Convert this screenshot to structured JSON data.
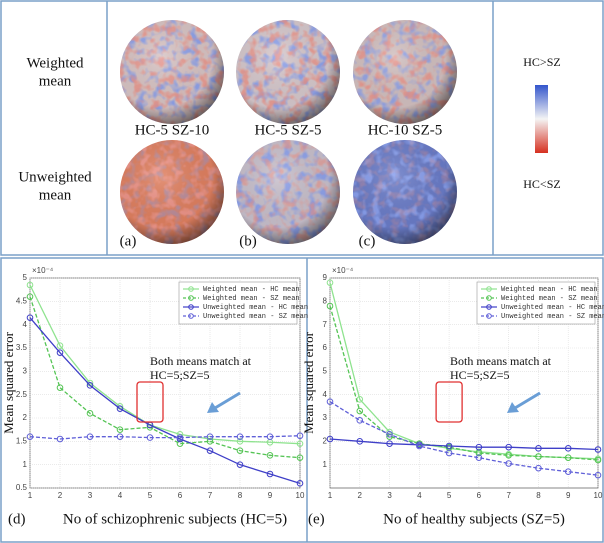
{
  "figure": {
    "row_labels": [
      [
        "Weighted",
        "mean"
      ],
      [
        "Unweighted",
        "mean"
      ]
    ],
    "sphere_labels": [
      "HC-5 SZ-10",
      "HC-5 SZ-5",
      "HC-10 SZ-5"
    ],
    "panel_letters": [
      "(a)",
      "(b)",
      "(c)"
    ],
    "colorbar_labels": [
      "HC>SZ",
      "HC<SZ"
    ]
  },
  "chart_data": [
    {
      "type": "line",
      "panel_letter": "(d)",
      "x_label": "No of schizophrenic subjects (HC=5)",
      "y_label": "Mean squared error",
      "y_exponent": "×10⁻⁴",
      "annotation": [
        "Both means match at",
        "HC=5;SZ=5"
      ],
      "x": [
        1,
        2,
        3,
        4,
        5,
        6,
        7,
        8,
        9,
        10
      ],
      "xlim": [
        1,
        10
      ],
      "xticks": [
        1,
        2,
        3,
        4,
        5,
        6,
        7,
        8,
        9,
        10
      ],
      "ylim": [
        0.5,
        5
      ],
      "yticks": [
        0.5,
        1,
        1.5,
        2,
        2.5,
        3,
        3.5,
        4,
        4.5,
        5
      ],
      "grid": true,
      "legend": "upper right",
      "series": [
        {
          "name": "Weighted mean - HC mean",
          "color": "#8fe38f",
          "dashed": false,
          "values": [
            4.85,
            3.55,
            2.75,
            2.25,
            1.85,
            1.65,
            1.55,
            1.5,
            1.48,
            1.45
          ]
        },
        {
          "name": "Weighted mean - SZ mean",
          "color": "#55c455",
          "dashed": true,
          "values": [
            4.6,
            2.65,
            2.1,
            1.75,
            1.8,
            1.45,
            1.5,
            1.3,
            1.2,
            1.15
          ]
        },
        {
          "name": "Unweighted mean - HC mean",
          "color": "#3f3fc8",
          "dashed": false,
          "values": [
            4.15,
            3.4,
            2.7,
            2.2,
            1.85,
            1.55,
            1.3,
            1.0,
            0.8,
            0.6
          ]
        },
        {
          "name": "Unweighted mean - SZ mean",
          "color": "#6060d8",
          "dashed": true,
          "values": [
            1.6,
            1.55,
            1.6,
            1.6,
            1.58,
            1.58,
            1.6,
            1.6,
            1.6,
            1.62
          ]
        }
      ]
    },
    {
      "type": "line",
      "panel_letter": "(e)",
      "x_label": "No of healthy subjects (SZ=5)",
      "y_label": "Mean squared error",
      "y_exponent": "×10⁻⁴",
      "annotation": [
        "Both means match at",
        "HC=5;SZ=5"
      ],
      "x": [
        1,
        2,
        3,
        4,
        5,
        6,
        7,
        8,
        9,
        10
      ],
      "xlim": [
        1,
        10
      ],
      "xticks": [
        1,
        2,
        3,
        4,
        5,
        6,
        7,
        8,
        9,
        10
      ],
      "ylim": [
        0,
        9
      ],
      "yticks": [
        1,
        2,
        3,
        4,
        5,
        6,
        7,
        8,
        9
      ],
      "grid": true,
      "legend": "upper right",
      "series": [
        {
          "name": "Weighted mean - HC mean",
          "color": "#8fe38f",
          "dashed": false,
          "values": [
            8.8,
            3.8,
            2.4,
            1.9,
            1.7,
            1.55,
            1.45,
            1.35,
            1.3,
            1.25
          ]
        },
        {
          "name": "Weighted mean - SZ mean",
          "color": "#55c455",
          "dashed": true,
          "values": [
            7.8,
            3.3,
            2.2,
            1.9,
            1.75,
            1.5,
            1.4,
            1.35,
            1.3,
            1.2
          ]
        },
        {
          "name": "Unweighted mean - HC mean",
          "color": "#3f3fc8",
          "dashed": false,
          "values": [
            2.1,
            2.0,
            1.9,
            1.85,
            1.8,
            1.75,
            1.75,
            1.7,
            1.7,
            1.65
          ]
        },
        {
          "name": "Unweighted mean - SZ mean",
          "color": "#6060d8",
          "dashed": true,
          "values": [
            3.7,
            2.9,
            2.3,
            1.8,
            1.5,
            1.3,
            1.05,
            0.85,
            0.7,
            0.55
          ]
        }
      ]
    }
  ]
}
